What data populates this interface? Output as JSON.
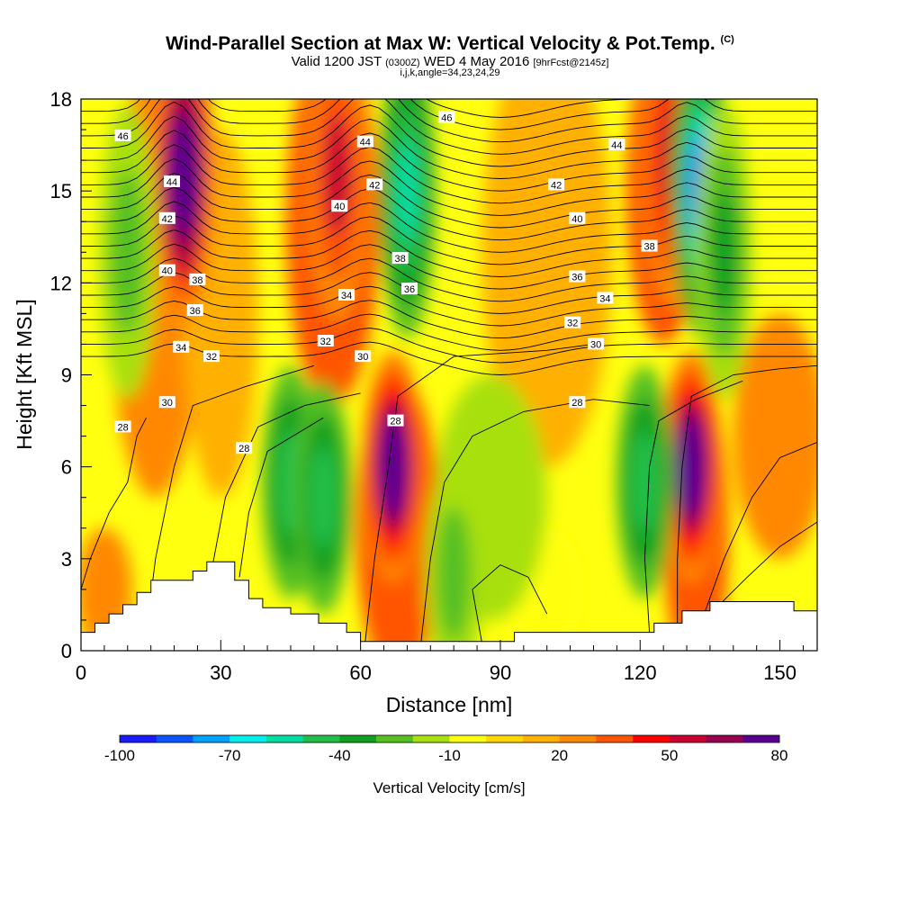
{
  "header": {
    "title": "Wind-Parallel Section at Max W: Vertical Velocity & Pot.Temp.",
    "title_mark": "(C)",
    "valid_prefix": "Valid 1200 JST",
    "valid_zulu": "(0300Z)",
    "valid_date": "WED 4 May 2016",
    "forecast_info": "[9hrFcst@2145z]",
    "index_line": "i,j,k,angle=34,23,24,29"
  },
  "chart_data": {
    "type": "heatmap",
    "xlabel": "Distance [nm]",
    "ylabel": "Height [Kft MSL]",
    "xlim": [
      0,
      158
    ],
    "ylim": [
      0,
      18
    ],
    "x_ticks": [
      "0",
      "30",
      "60",
      "90",
      "120",
      "150"
    ],
    "y_ticks": [
      "0",
      "3",
      "6",
      "9",
      "12",
      "15",
      "18"
    ],
    "x_tick_values": [
      0,
      30,
      60,
      90,
      120,
      150
    ],
    "y_tick_values": [
      0,
      3,
      6,
      9,
      12,
      15,
      18
    ],
    "colorbar": {
      "label": "Vertical Velocity [cm/s]",
      "levels": [
        -100,
        -90,
        -80,
        -70,
        -60,
        -50,
        -40,
        -30,
        -20,
        -10,
        0,
        10,
        20,
        30,
        40,
        50,
        60,
        70,
        80,
        90
      ],
      "tick_labels": [
        "-100",
        "-70",
        "-40",
        "-10",
        "20",
        "50",
        "80"
      ],
      "colors": [
        "#1a1aff",
        "#0a55ff",
        "#00a2ff",
        "#00eeee",
        "#00dda0",
        "#22c04a",
        "#10a020",
        "#55c020",
        "#a8e010",
        "#ffff10",
        "#ffd700",
        "#ffb000",
        "#ff8800",
        "#ff5500",
        "#ff0000",
        "#cc0030",
        "#990050",
        "#5a0090"
      ]
    },
    "vertical_velocity_cores": [
      {
        "x": 22,
        "z": 15.5,
        "w": 90
      },
      {
        "x": 55,
        "z": 15.5,
        "w": 50
      },
      {
        "x": 67,
        "z": 6,
        "w": 85
      },
      {
        "x": 131,
        "z": 6,
        "w": 85
      },
      {
        "x": 127,
        "z": 16,
        "w": 55
      },
      {
        "x": 70,
        "z": 15,
        "w": -60
      },
      {
        "x": 133,
        "z": 15,
        "w": -85
      },
      {
        "x": 45,
        "z": 5.5,
        "w": -45
      },
      {
        "x": 52,
        "z": 5,
        "w": -45
      },
      {
        "x": 121,
        "z": 5.5,
        "w": -45
      },
      {
        "x": 10,
        "z": 13,
        "w": -30
      },
      {
        "x": 138,
        "z": 13,
        "w": -40
      },
      {
        "x": 80,
        "z": 2.5,
        "w": -30
      }
    ],
    "theta_labels": [
      {
        "v": "46",
        "x": 9,
        "z": 16.8
      },
      {
        "v": "44",
        "x": 19.5,
        "z": 15.3
      },
      {
        "v": "42",
        "x": 18.5,
        "z": 14.1
      },
      {
        "v": "40",
        "x": 18.5,
        "z": 12.4
      },
      {
        "v": "38",
        "x": 25,
        "z": 12.1
      },
      {
        "v": "36",
        "x": 24.5,
        "z": 11.1
      },
      {
        "v": "34",
        "x": 21.5,
        "z": 9.9
      },
      {
        "v": "32",
        "x": 28,
        "z": 9.6
      },
      {
        "v": "30",
        "x": 18.5,
        "z": 8.1
      },
      {
        "v": "28",
        "x": 9,
        "z": 7.3
      },
      {
        "v": "28",
        "x": 35,
        "z": 6.6
      },
      {
        "v": "44",
        "x": 61,
        "z": 16.6
      },
      {
        "v": "42",
        "x": 63,
        "z": 15.2
      },
      {
        "v": "40",
        "x": 55.5,
        "z": 14.5
      },
      {
        "v": "46",
        "x": 78.5,
        "z": 17.4
      },
      {
        "v": "38",
        "x": 68.5,
        "z": 12.8
      },
      {
        "v": "36",
        "x": 70.5,
        "z": 11.8
      },
      {
        "v": "34",
        "x": 57,
        "z": 11.6
      },
      {
        "v": "32",
        "x": 52.5,
        "z": 10.1
      },
      {
        "v": "30",
        "x": 60.5,
        "z": 9.6
      },
      {
        "v": "28",
        "x": 67.5,
        "z": 7.5
      },
      {
        "v": "42",
        "x": 102,
        "z": 15.2
      },
      {
        "v": "44",
        "x": 115,
        "z": 16.5
      },
      {
        "v": "40",
        "x": 106.5,
        "z": 14.1
      },
      {
        "v": "38",
        "x": 122,
        "z": 13.2
      },
      {
        "v": "36",
        "x": 106.5,
        "z": 12.2
      },
      {
        "v": "34",
        "x": 112.5,
        "z": 11.5
      },
      {
        "v": "32",
        "x": 105.5,
        "z": 10.7
      },
      {
        "v": "30",
        "x": 110.5,
        "z": 10.0
      },
      {
        "v": "28",
        "x": 106.5,
        "z": 8.1
      }
    ],
    "terrain": [
      [
        0,
        0.6
      ],
      [
        3,
        0.6
      ],
      [
        3,
        0.9
      ],
      [
        6,
        0.9
      ],
      [
        6,
        1.2
      ],
      [
        9,
        1.2
      ],
      [
        9,
        1.5
      ],
      [
        12,
        1.5
      ],
      [
        12,
        1.9
      ],
      [
        15,
        1.9
      ],
      [
        15,
        2.3
      ],
      [
        24,
        2.3
      ],
      [
        24,
        2.6
      ],
      [
        27,
        2.6
      ],
      [
        27,
        2.9
      ],
      [
        33,
        2.9
      ],
      [
        33,
        2.3
      ],
      [
        36,
        2.3
      ],
      [
        36,
        1.7
      ],
      [
        39,
        1.7
      ],
      [
        39,
        1.4
      ],
      [
        45,
        1.4
      ],
      [
        45,
        1.2
      ],
      [
        51,
        1.2
      ],
      [
        51,
        0.9
      ],
      [
        57,
        0.9
      ],
      [
        57,
        0.6
      ],
      [
        60,
        0.6
      ],
      [
        60,
        0.3
      ],
      [
        93,
        0.3
      ],
      [
        93,
        0.6
      ],
      [
        123,
        0.6
      ],
      [
        123,
        0.9
      ],
      [
        129,
        0.9
      ],
      [
        129,
        1.3
      ],
      [
        135,
        1.3
      ],
      [
        135,
        1.6
      ],
      [
        153,
        1.6
      ],
      [
        153,
        1.3
      ],
      [
        158,
        1.3
      ]
    ]
  }
}
